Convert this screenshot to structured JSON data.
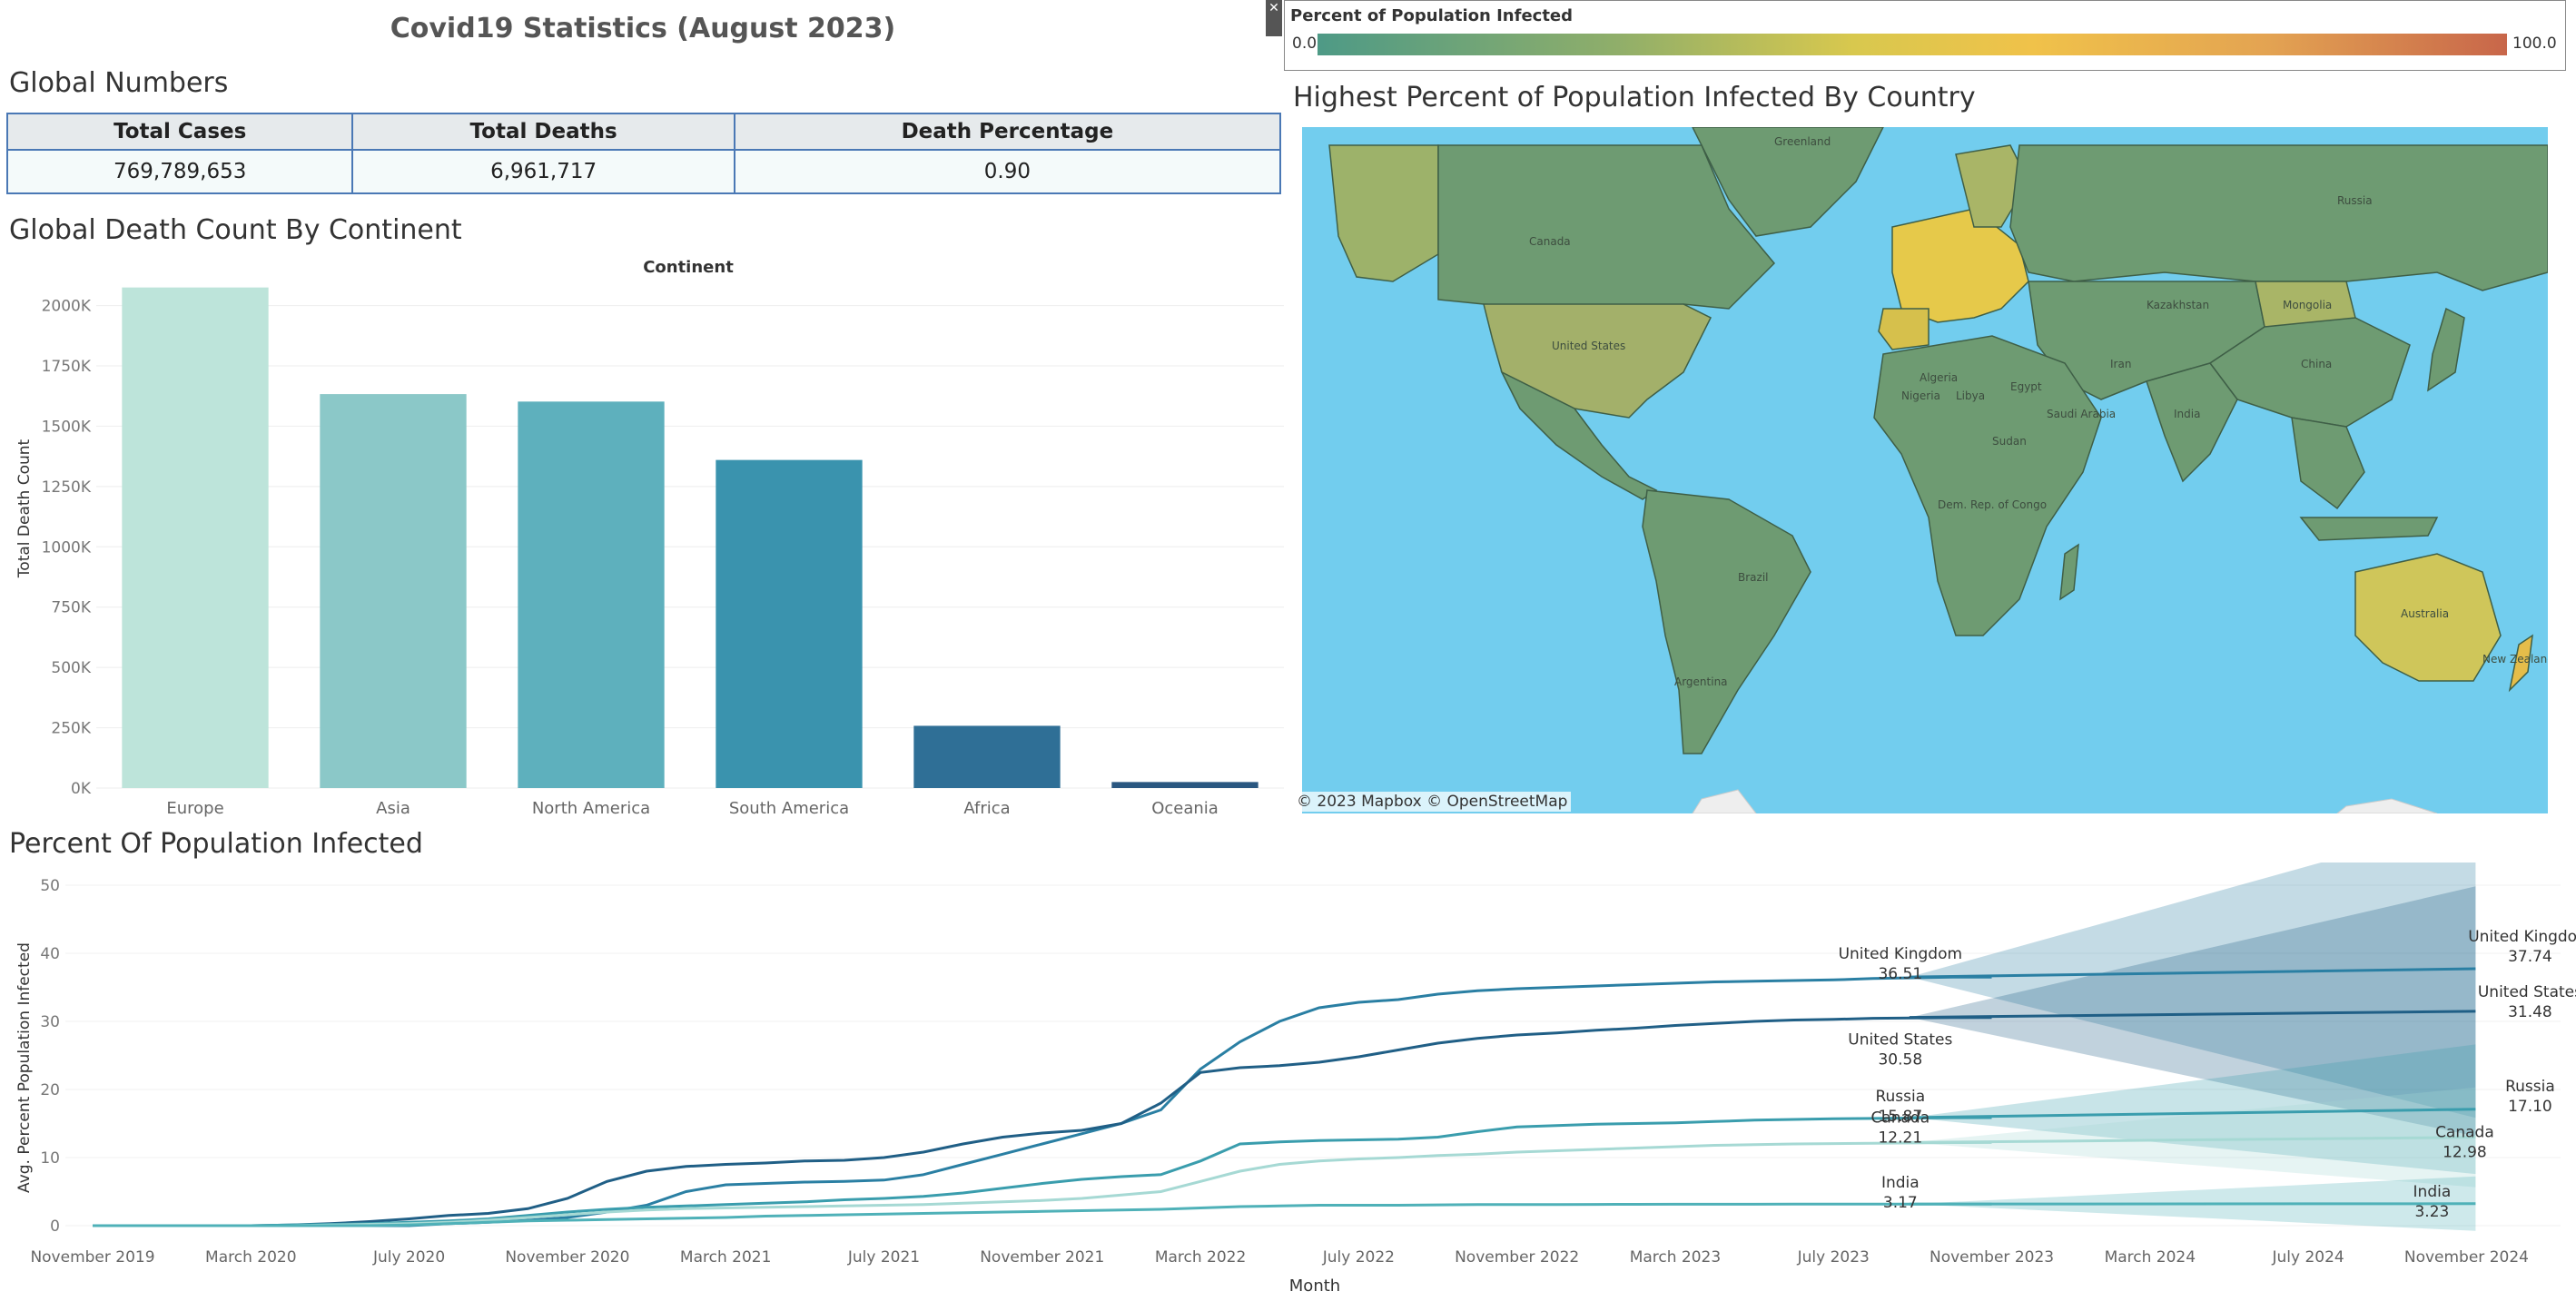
{
  "dashboard": {
    "title": "Covid19 Statistics (August 2023)"
  },
  "global_numbers": {
    "title": "Global Numbers",
    "headers": [
      "Total Cases",
      "Total Deaths",
      "Death Percentage"
    ],
    "values": [
      "769,789,653",
      "6,961,717",
      "0.90"
    ]
  },
  "death_by_continent": {
    "title": "Global Death Count By Continent"
  },
  "map": {
    "title": "Highest Percent of Population Infected By Country",
    "legend_title": "Percent of Population Infected",
    "legend_min": "0.0",
    "legend_max": "100.0",
    "attribution": "© 2023 Mapbox © OpenStreetMap",
    "labels": [
      "Greenland",
      "Canada",
      "United States",
      "Brazil",
      "Argentina",
      "Nigeria",
      "Sudan",
      "Libya",
      "Algeria",
      "Egypt",
      "Kazakhstan",
      "Mongolia",
      "China",
      "India",
      "Iran",
      "Russia",
      "Australia",
      "New Zealand",
      "Saudi Arabia",
      "Dem. Rep. of Congo"
    ],
    "colors": {
      "low": "#4e9a86",
      "mid": "#e8c547",
      "high": "#c8664a",
      "ocean": "#72cdee"
    }
  },
  "population_infected": {
    "title": "Percent Of Population Infected"
  },
  "chart_data": [
    {
      "type": "bar",
      "title": "",
      "legend_title": "Continent",
      "xlabel": "",
      "ylabel": "Total Death Count",
      "categories": [
        "Europe",
        "Asia",
        "North America",
        "South America",
        "Africa",
        "Oceania"
      ],
      "values": [
        2075000,
        1633000,
        1602000,
        1360000,
        258000,
        25000
      ],
      "colors": [
        "#bde4da",
        "#8bc8c8",
        "#5eb0bd",
        "#3a93ae",
        "#2f6f96",
        "#2a5780"
      ],
      "ylim": [
        0,
        2100000
      ],
      "yticks": [
        0,
        250000,
        500000,
        750000,
        1000000,
        1250000,
        1500000,
        1750000,
        2000000
      ],
      "ytick_labels": [
        "0K",
        "250K",
        "500K",
        "750K",
        "1000K",
        "1250K",
        "1500K",
        "1750K",
        "2000K"
      ],
      "grid": true
    },
    {
      "type": "line",
      "title": "",
      "xlabel": "Month",
      "ylabel": "Avg. Percent Population Infected",
      "ylim": [
        0,
        50
      ],
      "yticks": [
        0,
        10,
        20,
        30,
        40,
        50
      ],
      "xtick_labels": [
        "November 2019",
        "March 2020",
        "July 2020",
        "November 2020",
        "March 2021",
        "July 2021",
        "November 2021",
        "March 2022",
        "July 2022",
        "November 2022",
        "March 2023",
        "July 2023",
        "November 2023",
        "March 2024",
        "July 2024",
        "November 2024"
      ],
      "x_start": "2019-11",
      "x_end": "2024-12",
      "actual_end": "2023-08",
      "series": [
        {
          "name": "United Kingdom",
          "color": "#2a7fa3",
          "values": [
            0,
            0,
            0,
            0,
            0,
            0,
            0,
            0,
            0,
            0.3,
            0.5,
            0.8,
            1.2,
            2,
            3,
            5,
            6,
            6.2,
            6.4,
            6.5,
            6.7,
            7.5,
            9,
            10.5,
            12,
            13.5,
            15,
            17,
            23,
            27,
            30,
            32,
            32.8,
            33.2,
            34,
            34.5,
            34.8,
            35,
            35.2,
            35.4,
            35.6,
            35.8,
            35.9,
            36,
            36.1,
            36.3,
            36.4,
            36.5,
            36.51
          ],
          "end_label": "36.51",
          "forecast": 37.74,
          "forecast_label": "37.74"
        },
        {
          "name": "United States",
          "color": "#205f86",
          "values": [
            0,
            0,
            0,
            0,
            0,
            0.1,
            0.3,
            0.6,
            1,
            1.5,
            1.8,
            2.5,
            4,
            6.5,
            8,
            8.7,
            9,
            9.2,
            9.5,
            9.6,
            10,
            10.8,
            12,
            13,
            13.6,
            14,
            15,
            18,
            22.5,
            23.2,
            23.5,
            24,
            24.8,
            25.8,
            26.8,
            27.5,
            28,
            28.3,
            28.7,
            29,
            29.4,
            29.7,
            30,
            30.2,
            30.3,
            30.45,
            30.5,
            30.55,
            30.58
          ],
          "end_label": "30.58",
          "forecast": 31.48,
          "forecast_label": "31.48"
        },
        {
          "name": "Russia",
          "color": "#3a9dad",
          "values": [
            0,
            0,
            0,
            0,
            0,
            0.1,
            0.2,
            0.3,
            0.5,
            0.7,
            1,
            1.5,
            2,
            2.4,
            2.7,
            2.9,
            3.1,
            3.3,
            3.5,
            3.8,
            4,
            4.3,
            4.8,
            5.5,
            6.2,
            6.8,
            7.2,
            7.5,
            9.5,
            12,
            12.3,
            12.5,
            12.6,
            12.7,
            13,
            13.8,
            14.5,
            14.7,
            14.9,
            15,
            15.1,
            15.3,
            15.5,
            15.6,
            15.7,
            15.75,
            15.8,
            15.85,
            15.87
          ],
          "end_label": "15.87",
          "forecast": 17.1,
          "forecast_label": "17.10"
        },
        {
          "name": "Canada",
          "color": "#a6d9d4",
          "values": [
            0,
            0,
            0,
            0,
            0,
            0,
            0.1,
            0.2,
            0.3,
            0.5,
            0.8,
            1.2,
            1.6,
            2,
            2.3,
            2.5,
            2.6,
            2.7,
            2.8,
            2.9,
            3,
            3.1,
            3.3,
            3.5,
            3.7,
            4,
            4.5,
            5,
            6.5,
            8,
            9,
            9.5,
            9.8,
            10,
            10.3,
            10.5,
            10.8,
            11,
            11.2,
            11.4,
            11.6,
            11.8,
            11.9,
            12,
            12.05,
            12.1,
            12.15,
            12.2,
            12.21
          ],
          "end_label": "12.21",
          "forecast": 12.98,
          "forecast_label": "12.98"
        },
        {
          "name": "India",
          "color": "#4fb1b8",
          "values": [
            0,
            0,
            0,
            0,
            0,
            0,
            0,
            0,
            0.1,
            0.3,
            0.5,
            0.7,
            0.8,
            0.9,
            1,
            1.1,
            1.2,
            1.4,
            1.5,
            1.6,
            1.7,
            1.8,
            1.9,
            2,
            2.1,
            2.2,
            2.3,
            2.4,
            2.6,
            2.8,
            2.9,
            3,
            3,
            3,
            3.05,
            3.1,
            3.1,
            3.1,
            3.12,
            3.13,
            3.14,
            3.15,
            3.15,
            3.16,
            3.16,
            3.17,
            3.17,
            3.17,
            3.17
          ],
          "end_label": "3.17",
          "forecast": 3.23,
          "forecast_label": "3.23"
        }
      ]
    }
  ]
}
